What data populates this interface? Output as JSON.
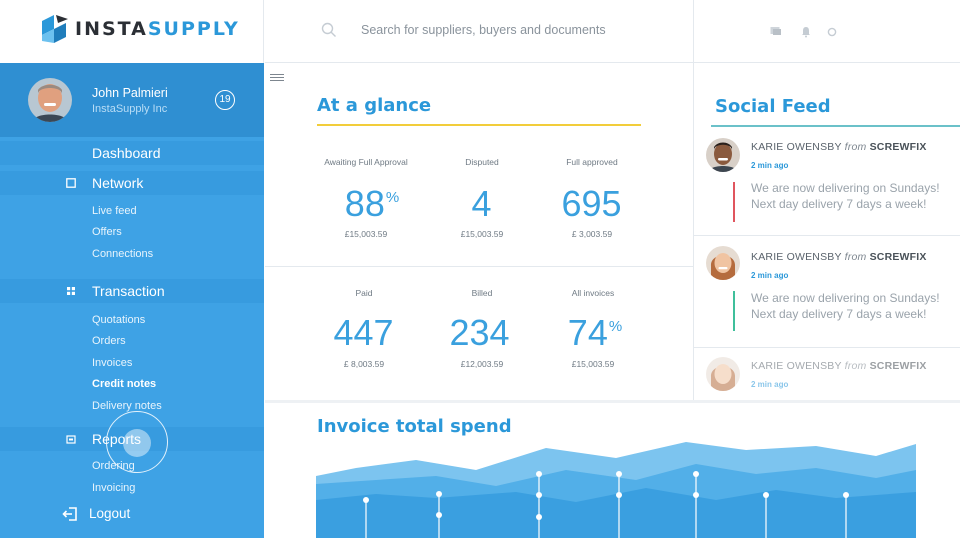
{
  "app": {
    "logo_main": "INSTA",
    "logo_accent": "SUPPLY",
    "brand_color": "#2b98d9"
  },
  "search": {
    "placeholder": "Search for suppliers, buyers and documents"
  },
  "profile": {
    "name": "John Palmieri",
    "company": "InstaSupply Inc",
    "notification_count": "19"
  },
  "sidebar": {
    "dashboard": "Dashboard",
    "network": {
      "label": "Network",
      "items": [
        "Live feed",
        "Offers",
        "Connections"
      ]
    },
    "transaction": {
      "label": "Transaction",
      "items": [
        "Quotations",
        "Orders",
        "Invoices",
        "Credit notes",
        "Delivery notes"
      ]
    },
    "reports": {
      "label": "Reports",
      "items": [
        "Ordering",
        "Invoicing"
      ]
    },
    "logout": "Logout"
  },
  "glance": {
    "title": "At a glance",
    "stats": [
      {
        "label": "Awaiting Full Approval",
        "value": "88",
        "unit": "%",
        "amount": "£15,003.59"
      },
      {
        "label": "Disputed",
        "value": "4",
        "unit": "",
        "amount": "£15,003.59"
      },
      {
        "label": "Full approved",
        "value": "695",
        "unit": "",
        "amount": "£ 3,003.59"
      },
      {
        "label": "Paid",
        "value": "447",
        "unit": "",
        "amount": "£ 8,003.59"
      },
      {
        "label": "Billed",
        "value": "234",
        "unit": "",
        "amount": "£12,003.59"
      },
      {
        "label": "All invoices",
        "value": "74",
        "unit": "%",
        "amount": "£15,003.59"
      }
    ]
  },
  "feed": {
    "title": "Social Feed",
    "posts": [
      {
        "author": "KARIE OWENSBY",
        "from": "from",
        "company": "SCREWFIX",
        "time": "2 min ago",
        "text": "We are now delivering on Sundays! Next day delivery 7 days a week!",
        "bar_color": "#e0555e"
      },
      {
        "author": "KARIE OWENSBY",
        "from": "from",
        "company": "SCREWFIX",
        "time": "2 min ago",
        "text": "We are now delivering on Sundays! Next day delivery 7 days a week!",
        "bar_color": "#3fbf9b"
      },
      {
        "author": "KARIE OWENSBY",
        "from": "from",
        "company": "SCREWFIX",
        "time": "2 min ago",
        "text": "",
        "bar_color": "#3fbf9b"
      }
    ]
  },
  "invoice": {
    "title": "Invoice total spend"
  }
}
